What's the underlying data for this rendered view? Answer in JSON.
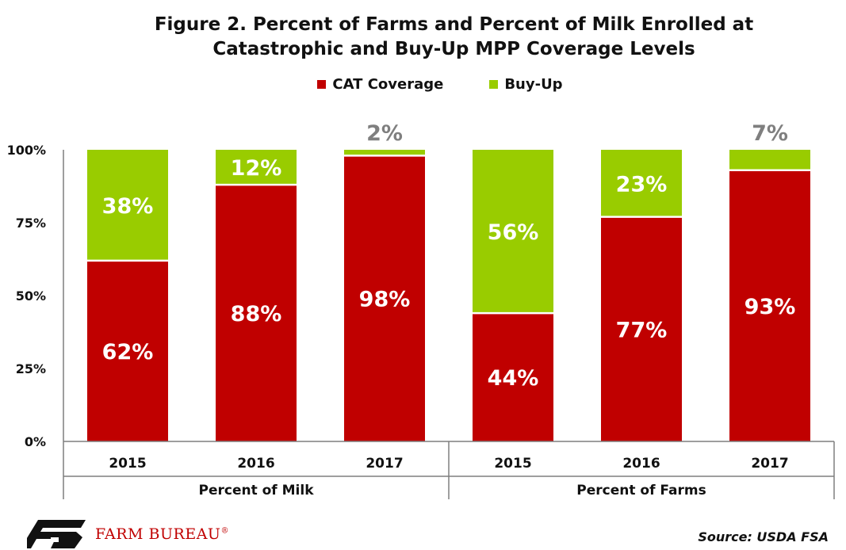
{
  "chart_data": {
    "type": "bar",
    "stacked": true,
    "title_line1": "Figure 2. Percent of Farms and Percent of Milk Enrolled at",
    "title_line2": "Catastrophic and Buy-Up MPP Coverage Levels",
    "groups": [
      {
        "name": "Percent of Milk",
        "categories": [
          "2015",
          "2016",
          "2017"
        ]
      },
      {
        "name": "Percent of Farms",
        "categories": [
          "2015",
          "2016",
          "2017"
        ]
      }
    ],
    "categories": [
      "2015",
      "2016",
      "2017",
      "2015",
      "2016",
      "2017"
    ],
    "series": [
      {
        "name": "CAT Coverage",
        "color": "#c00000",
        "values": [
          62,
          88,
          98,
          44,
          77,
          93
        ],
        "labels": [
          "62%",
          "88%",
          "98%",
          "44%",
          "77%",
          "93%"
        ]
      },
      {
        "name": "Buy-Up",
        "color": "#99cc00",
        "values": [
          38,
          12,
          2,
          56,
          23,
          7
        ],
        "labels": [
          "38%",
          "12%",
          "2%",
          "56%",
          "23%",
          "7%"
        ]
      }
    ],
    "ylim": [
      0,
      100
    ],
    "yticks": [
      "0%",
      "25%",
      "50%",
      "75%",
      "100%"
    ],
    "ytick_values": [
      0,
      25,
      50,
      75,
      100
    ],
    "legend_position": "top-center",
    "grid": false
  },
  "footer": {
    "logo_text": "FARM BUREAU",
    "logo_mark": "®",
    "source": "Source: USDA FSA"
  }
}
